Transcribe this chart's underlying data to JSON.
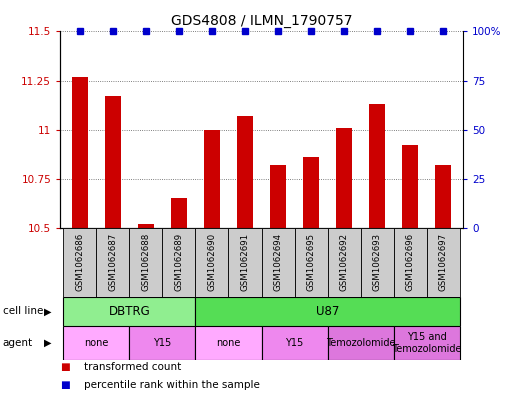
{
  "title": "GDS4808 / ILMN_1790757",
  "samples": [
    "GSM1062686",
    "GSM1062687",
    "GSM1062688",
    "GSM1062689",
    "GSM1062690",
    "GSM1062691",
    "GSM1062694",
    "GSM1062695",
    "GSM1062692",
    "GSM1062693",
    "GSM1062696",
    "GSM1062697"
  ],
  "bar_values": [
    11.27,
    11.17,
    10.52,
    10.65,
    11.0,
    11.07,
    10.82,
    10.86,
    11.01,
    11.13,
    10.92,
    10.82
  ],
  "percentile_values": [
    100,
    100,
    100,
    100,
    100,
    100,
    100,
    100,
    100,
    100,
    100,
    100
  ],
  "bar_color": "#cc0000",
  "dot_color": "#0000cc",
  "ylim_left": [
    10.5,
    11.5
  ],
  "ylim_right": [
    0,
    100
  ],
  "yticks_left": [
    10.5,
    10.75,
    11.0,
    11.25,
    11.5
  ],
  "yticks_right": [
    0,
    25,
    50,
    75,
    100
  ],
  "ytick_labels_left": [
    "10.5",
    "10.75",
    "11",
    "11.25",
    "11.5"
  ],
  "ytick_labels_right": [
    "0",
    "25",
    "50",
    "75",
    "100%"
  ],
  "cell_line_data": [
    {
      "label": "DBTRG",
      "start": 0,
      "end": 4,
      "color": "#90ee90"
    },
    {
      "label": "U87",
      "start": 4,
      "end": 12,
      "color": "#55dd55"
    }
  ],
  "agent_data": [
    {
      "label": "none",
      "start": 0,
      "end": 2,
      "color": "#ffaaff"
    },
    {
      "label": "Y15",
      "start": 2,
      "end": 4,
      "color": "#ee88ee"
    },
    {
      "label": "none",
      "start": 4,
      "end": 6,
      "color": "#ffaaff"
    },
    {
      "label": "Y15",
      "start": 6,
      "end": 8,
      "color": "#ee88ee"
    },
    {
      "label": "Temozolomide",
      "start": 8,
      "end": 10,
      "color": "#dd77dd"
    },
    {
      "label": "Y15 and\nTemozolomide",
      "start": 10,
      "end": 12,
      "color": "#dd77dd"
    }
  ],
  "sample_box_color": "#cccccc",
  "legend_items": [
    {
      "label": "transformed count",
      "color": "#cc0000"
    },
    {
      "label": "percentile rank within the sample",
      "color": "#0000cc"
    }
  ],
  "background_color": "#ffffff",
  "grid_color": "#555555",
  "bar_width": 0.5
}
